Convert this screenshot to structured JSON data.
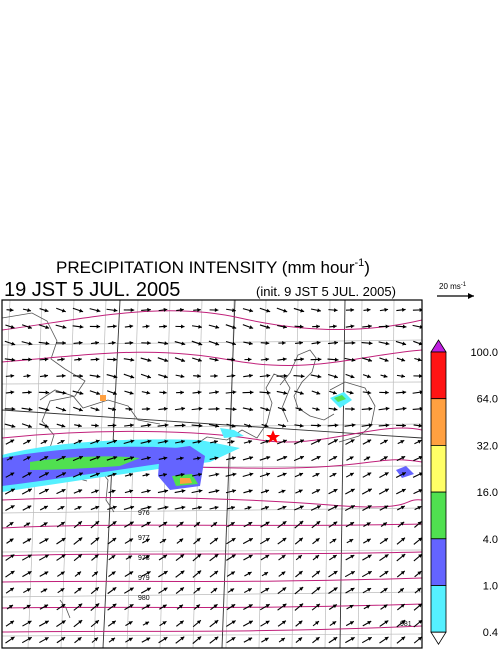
{
  "title": {
    "main": "PRECIPITATION INTENSITY (mm hour",
    "exp": "-1",
    "close": ")"
  },
  "time": "19 JST 5 JUL. 2005",
  "init": "(init. 9 JST 5 JUL. 2005)",
  "scale_arrow": {
    "label": "20 ms",
    "exp": "-1"
  },
  "colorbar": {
    "labels": [
      "100.0",
      "64.0",
      "32.0",
      "16.0",
      "4.0",
      "1.0",
      "0.4"
    ]
  },
  "isobar_labels": [
    "976",
    "977",
    "978",
    "979",
    "980",
    "981"
  ]
}
